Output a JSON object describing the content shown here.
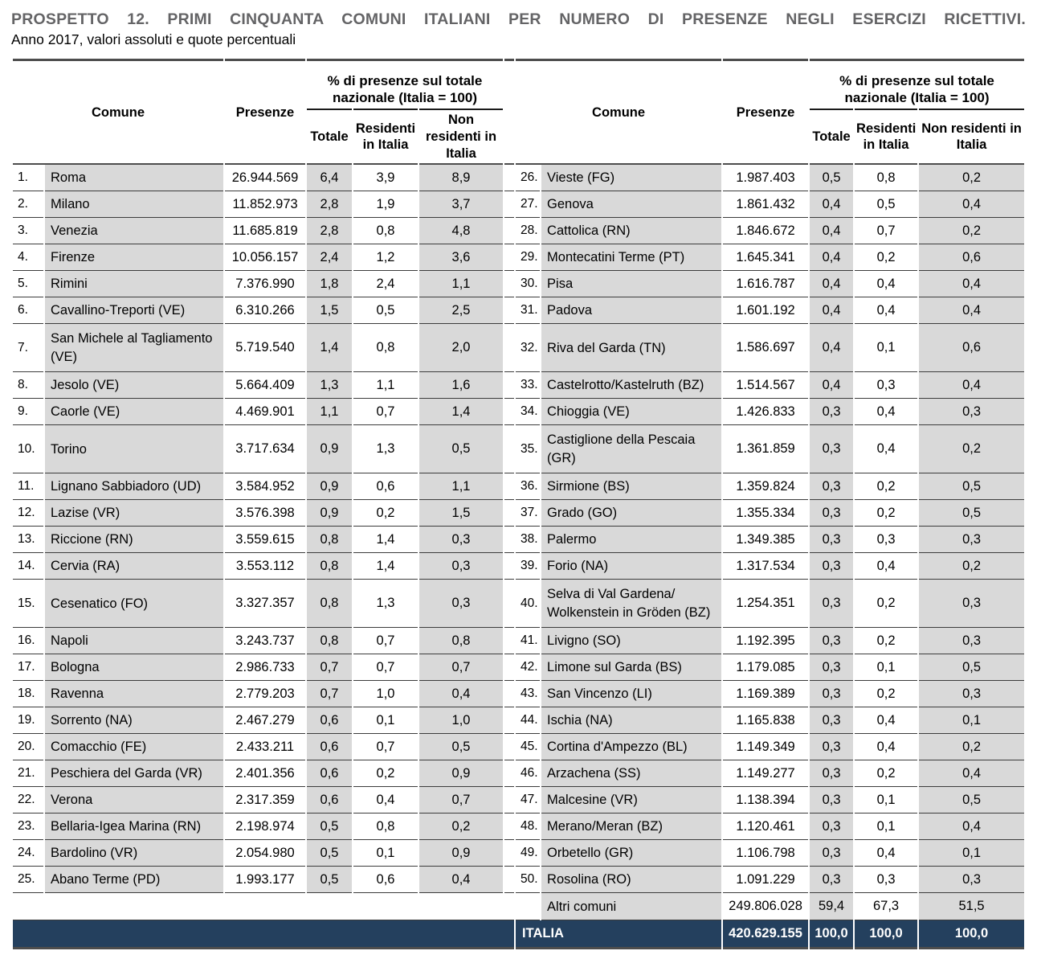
{
  "title": "PROSPETTO 12. PRIMI CINQUANTA COMUNI ITALIANI PER NUMERO DI PRESENZE NEGLI ESERCIZI RICETTIVI.",
  "subtitle": "Anno 2017, valori assoluti e quote percentuali",
  "colors": {
    "grey": "#D9D9D9",
    "navy": "#24405E",
    "line": "#3C3C3C",
    "title_grey": "#646466"
  },
  "table": {
    "headers": {
      "comune": "Comune",
      "presenze": "Presenze",
      "pct_group": "% di presenze sul totale nazionale (Italia = 100)",
      "totale": "Totale",
      "residenti": "Residenti in Italia",
      "non_residenti": "Non residenti in Italia"
    },
    "rows_left": [
      {
        "rank": "1.",
        "comune": "Roma",
        "presenze": "26.944.569",
        "totale": "6,4",
        "residenti": "3,9",
        "non_residenti": "8,9"
      },
      {
        "rank": "2.",
        "comune": "Milano",
        "presenze": "11.852.973",
        "totale": "2,8",
        "residenti": "1,9",
        "non_residenti": "3,7"
      },
      {
        "rank": "3.",
        "comune": "Venezia",
        "presenze": "11.685.819",
        "totale": "2,8",
        "residenti": "0,8",
        "non_residenti": "4,8"
      },
      {
        "rank": "4.",
        "comune": "Firenze",
        "presenze": "10.056.157",
        "totale": "2,4",
        "residenti": "1,2",
        "non_residenti": "3,6"
      },
      {
        "rank": "5.",
        "comune": "Rimini",
        "presenze": "7.376.990",
        "totale": "1,8",
        "residenti": "2,4",
        "non_residenti": "1,1"
      },
      {
        "rank": "6.",
        "comune": "Cavallino-Treporti (VE)",
        "presenze": "6.310.266",
        "totale": "1,5",
        "residenti": "0,5",
        "non_residenti": "2,5"
      },
      {
        "rank": "7.",
        "comune": "San Michele al Tagliamento (VE)",
        "presenze": "5.719.540",
        "totale": "1,4",
        "residenti": "0,8",
        "non_residenti": "2,0"
      },
      {
        "rank": "8.",
        "comune": "Jesolo (VE)",
        "presenze": "5.664.409",
        "totale": "1,3",
        "residenti": "1,1",
        "non_residenti": "1,6"
      },
      {
        "rank": "9.",
        "comune": "Caorle (VE)",
        "presenze": "4.469.901",
        "totale": "1,1",
        "residenti": "0,7",
        "non_residenti": "1,4"
      },
      {
        "rank": "10.",
        "comune": "Torino",
        "presenze": "3.717.634",
        "totale": "0,9",
        "residenti": "1,3",
        "non_residenti": "0,5"
      },
      {
        "rank": "11.",
        "comune": "Lignano Sabbiadoro (UD)",
        "presenze": "3.584.952",
        "totale": "0,9",
        "residenti": "0,6",
        "non_residenti": "1,1"
      },
      {
        "rank": "12.",
        "comune": "Lazise (VR)",
        "presenze": "3.576.398",
        "totale": "0,9",
        "residenti": "0,2",
        "non_residenti": "1,5"
      },
      {
        "rank": "13.",
        "comune": "Riccione (RN)",
        "presenze": "3.559.615",
        "totale": "0,8",
        "residenti": "1,4",
        "non_residenti": "0,3"
      },
      {
        "rank": "14.",
        "comune": "Cervia (RA)",
        "presenze": "3.553.112",
        "totale": "0,8",
        "residenti": "1,4",
        "non_residenti": "0,3"
      },
      {
        "rank": "15.",
        "comune": "Cesenatico (FO)",
        "presenze": "3.327.357",
        "totale": "0,8",
        "residenti": "1,3",
        "non_residenti": "0,3"
      },
      {
        "rank": "16.",
        "comune": "Napoli",
        "presenze": "3.243.737",
        "totale": "0,8",
        "residenti": "0,7",
        "non_residenti": "0,8"
      },
      {
        "rank": "17.",
        "comune": "Bologna",
        "presenze": "2.986.733",
        "totale": "0,7",
        "residenti": "0,7",
        "non_residenti": "0,7"
      },
      {
        "rank": "18.",
        "comune": "Ravenna",
        "presenze": "2.779.203",
        "totale": "0,7",
        "residenti": "1,0",
        "non_residenti": "0,4"
      },
      {
        "rank": "19.",
        "comune": "Sorrento (NA)",
        "presenze": "2.467.279",
        "totale": "0,6",
        "residenti": "0,1",
        "non_residenti": "1,0"
      },
      {
        "rank": "20.",
        "comune": "Comacchio (FE)",
        "presenze": "2.433.211",
        "totale": "0,6",
        "residenti": "0,7",
        "non_residenti": "0,5"
      },
      {
        "rank": "21.",
        "comune": "Peschiera del Garda (VR)",
        "presenze": "2.401.356",
        "totale": "0,6",
        "residenti": "0,2",
        "non_residenti": "0,9"
      },
      {
        "rank": "22.",
        "comune": "Verona",
        "presenze": "2.317.359",
        "totale": "0,6",
        "residenti": "0,4",
        "non_residenti": "0,7"
      },
      {
        "rank": "23.",
        "comune": "Bellaria-Igea Marina (RN)",
        "presenze": "2.198.974",
        "totale": "0,5",
        "residenti": "0,8",
        "non_residenti": "0,2"
      },
      {
        "rank": "24.",
        "comune": "Bardolino (VR)",
        "presenze": "2.054.980",
        "totale": "0,5",
        "residenti": "0,1",
        "non_residenti": "0,9"
      },
      {
        "rank": "25.",
        "comune": "Abano Terme (PD)",
        "presenze": "1.993.177",
        "totale": "0,5",
        "residenti": "0,6",
        "non_residenti": "0,4"
      }
    ],
    "rows_right": [
      {
        "rank": "26.",
        "comune": "Vieste (FG)",
        "presenze": "1.987.403",
        "totale": "0,5",
        "residenti": "0,8",
        "non_residenti": "0,2"
      },
      {
        "rank": "27.",
        "comune": "Genova",
        "presenze": "1.861.432",
        "totale": "0,4",
        "residenti": "0,5",
        "non_residenti": "0,4"
      },
      {
        "rank": "28.",
        "comune": "Cattolica (RN)",
        "presenze": "1.846.672",
        "totale": "0,4",
        "residenti": "0,7",
        "non_residenti": "0,2"
      },
      {
        "rank": "29.",
        "comune": "Montecatini Terme (PT)",
        "presenze": "1.645.341",
        "totale": "0,4",
        "residenti": "0,2",
        "non_residenti": "0,6"
      },
      {
        "rank": "30.",
        "comune": "Pisa",
        "presenze": "1.616.787",
        "totale": "0,4",
        "residenti": "0,4",
        "non_residenti": "0,4"
      },
      {
        "rank": "31.",
        "comune": "Padova",
        "presenze": "1.601.192",
        "totale": "0,4",
        "residenti": "0,4",
        "non_residenti": "0,4"
      },
      {
        "rank": "32.",
        "comune": "Riva del Garda (TN)",
        "presenze": "1.586.697",
        "totale": "0,4",
        "residenti": "0,1",
        "non_residenti": "0,6"
      },
      {
        "rank": "33.",
        "comune": "Castelrotto/Kastelruth (BZ)",
        "presenze": "1.514.567",
        "totale": "0,4",
        "residenti": "0,3",
        "non_residenti": "0,4"
      },
      {
        "rank": "34.",
        "comune": "Chioggia (VE)",
        "presenze": "1.426.833",
        "totale": "0,3",
        "residenti": "0,4",
        "non_residenti": "0,3"
      },
      {
        "rank": "35.",
        "comune": "Castiglione della Pescaia (GR)",
        "presenze": "1.361.859",
        "totale": "0,3",
        "residenti": "0,4",
        "non_residenti": "0,2"
      },
      {
        "rank": "36.",
        "comune": "Sirmione (BS)",
        "presenze": "1.359.824",
        "totale": "0,3",
        "residenti": "0,2",
        "non_residenti": "0,5"
      },
      {
        "rank": "37.",
        "comune": "Grado (GO)",
        "presenze": "1.355.334",
        "totale": "0,3",
        "residenti": "0,2",
        "non_residenti": "0,5"
      },
      {
        "rank": "38.",
        "comune": "Palermo",
        "presenze": "1.349.385",
        "totale": "0,3",
        "residenti": "0,3",
        "non_residenti": "0,3"
      },
      {
        "rank": "39.",
        "comune": "Forio (NA)",
        "presenze": "1.317.534",
        "totale": "0,3",
        "residenti": "0,4",
        "non_residenti": "0,2"
      },
      {
        "rank": "40.",
        "comune": "Selva di Val Gardena/Wolkenstein in Gröden (BZ)",
        "presenze": "1.254.351",
        "totale": "0,3",
        "residenti": "0,2",
        "non_residenti": "0,3"
      },
      {
        "rank": "41.",
        "comune": "Livigno (SO)",
        "presenze": "1.192.395",
        "totale": "0,3",
        "residenti": "0,2",
        "non_residenti": "0,3"
      },
      {
        "rank": "42.",
        "comune": "Limone sul Garda (BS)",
        "presenze": "1.179.085",
        "totale": "0,3",
        "residenti": "0,1",
        "non_residenti": "0,5"
      },
      {
        "rank": "43.",
        "comune": "San Vincenzo (LI)",
        "presenze": "1.169.389",
        "totale": "0,3",
        "residenti": "0,2",
        "non_residenti": "0,3"
      },
      {
        "rank": "44.",
        "comune": "Ischia (NA)",
        "presenze": "1.165.838",
        "totale": "0,3",
        "residenti": "0,4",
        "non_residenti": "0,1"
      },
      {
        "rank": "45.",
        "comune": "Cortina d'Ampezzo (BL)",
        "presenze": "1.149.349",
        "totale": "0,3",
        "residenti": "0,4",
        "non_residenti": "0,2"
      },
      {
        "rank": "46.",
        "comune": "Arzachena (SS)",
        "presenze": "1.149.277",
        "totale": "0,3",
        "residenti": "0,2",
        "non_residenti": "0,4"
      },
      {
        "rank": "47.",
        "comune": "Malcesine (VR)",
        "presenze": "1.138.394",
        "totale": "0,3",
        "residenti": "0,1",
        "non_residenti": "0,5"
      },
      {
        "rank": "48.",
        "comune": "Merano/Meran (BZ)",
        "presenze": "1.120.461",
        "totale": "0,3",
        "residenti": "0,1",
        "non_residenti": "0,4"
      },
      {
        "rank": "49.",
        "comune": "Orbetello (GR)",
        "presenze": "1.106.798",
        "totale": "0,3",
        "residenti": "0,4",
        "non_residenti": "0,1"
      },
      {
        "rank": "50.",
        "comune": "Rosolina (RO)",
        "presenze": "1.091.229",
        "totale": "0,3",
        "residenti": "0,3",
        "non_residenti": "0,3"
      }
    ],
    "altri": {
      "label": "Altri comuni",
      "presenze": "249.806.028",
      "totale": "59,4",
      "residenti": "67,3",
      "non_residenti": "51,5"
    },
    "italia": {
      "label": "ITALIA",
      "presenze": "420.629.155",
      "totale": "100,0",
      "residenti": "100,0",
      "non_residenti": "100,0"
    }
  }
}
